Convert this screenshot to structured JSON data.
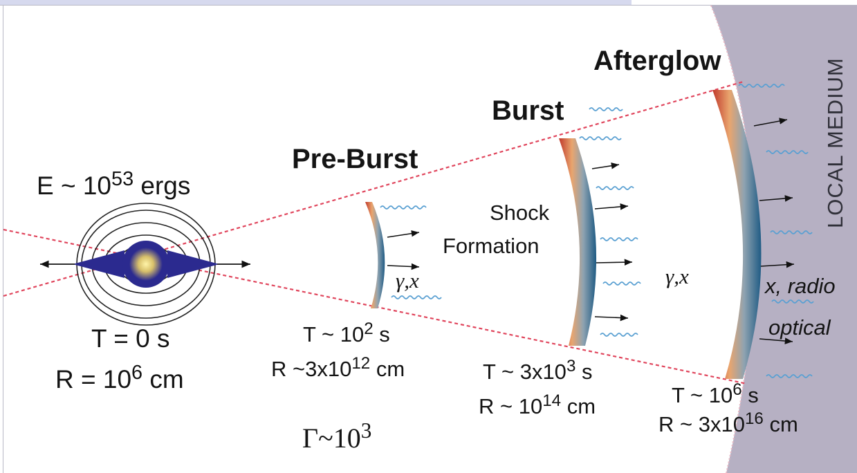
{
  "source": {
    "energy": {
      "prefix": "E ~ 10",
      "exp": "53",
      "suffix": " ergs"
    },
    "time": "T = 0 s",
    "radius": {
      "prefix": "R = 10",
      "exp": "6",
      "suffix": " cm"
    }
  },
  "phases": {
    "preburst": {
      "title": "Pre-Burst",
      "emission": "γ,x",
      "time": {
        "prefix": "T ~ 10",
        "exp": "2",
        "suffix": " s"
      },
      "radius": {
        "prefix": "R ~3x10",
        "exp": "12",
        "suffix": " cm"
      }
    },
    "burst": {
      "title": "Burst",
      "note_line1": "Shock",
      "note_line2": "Formation",
      "emission": "γ,x",
      "time": {
        "prefix": "T ~ 3x10",
        "exp": "3",
        "suffix": " s"
      },
      "radius": {
        "prefix": "R ~ 10",
        "exp": "14",
        "suffix": " cm"
      }
    },
    "afterglow": {
      "title": "Afterglow",
      "emission_line1": "x, radio",
      "emission_line2": "optical",
      "time": {
        "prefix": "T ~ 10",
        "exp": "6",
        "suffix": " s"
      },
      "radius": {
        "prefix": "R ~ 3x10",
        "exp": "16",
        "suffix": " cm"
      }
    }
  },
  "lorentz": {
    "prefix": "Γ~10",
    "exp": "3"
  },
  "medium_label": "LOCAL MEDIUM",
  "colors": {
    "medium": "#b6b0c3",
    "cone_line": "#e0455c",
    "photon_wave": "#5aa0d2",
    "shell_inner": "#c0392b",
    "shell_mid": "#e9a56e",
    "shell_outer": "#1f5b84",
    "core": "#2b2a8f",
    "core_glow": "#ffe27a"
  }
}
